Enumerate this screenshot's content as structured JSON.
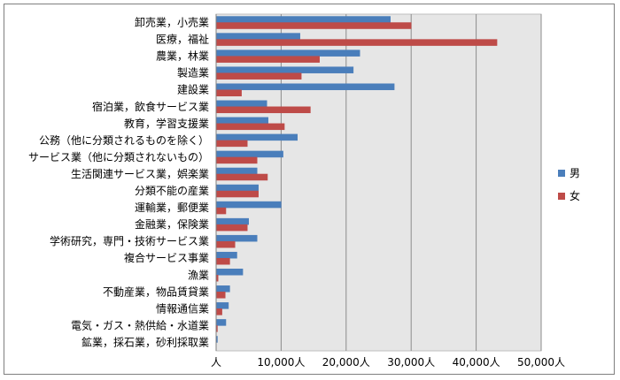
{
  "chart_data": {
    "type": "bar",
    "orientation": "horizontal",
    "categories": [
      "卸売業，小売業",
      "医療，福祉",
      "農業，林業",
      "製造業",
      "建設業",
      "宿泊業，飲食サービス業",
      "教育，学習支援業",
      "公務（他に分類されるものを除く）",
      "サービス業（他に分類されないもの）",
      "生活関連サービス業，娯楽業",
      "分類不能の産業",
      "運輸業，郵便業",
      "金融業，保険業",
      "学術研究，専門・技術サービス業",
      "複合サービス事業",
      "漁業",
      "不動産業，物品賃貸業",
      "情報通信業",
      "電気・ガス・熱供給・水道業",
      "鉱業，採石業，砂利採取業"
    ],
    "series": [
      {
        "name": "男",
        "color": "#4a7ebb",
        "values": [
          26800,
          12900,
          22100,
          21100,
          27400,
          7800,
          8000,
          12500,
          10300,
          6300,
          6500,
          10000,
          5000,
          6300,
          3200,
          4100,
          2100,
          1900,
          1500,
          200
        ]
      },
      {
        "name": "女",
        "color": "#be4b48",
        "values": [
          30000,
          43200,
          15900,
          13100,
          3900,
          14500,
          10500,
          4800,
          6300,
          7900,
          6500,
          1500,
          4800,
          2900,
          2100,
          300,
          1400,
          900,
          200,
          0
        ]
      }
    ],
    "xlim": [
      0,
      50000
    ],
    "xticks": [
      0,
      10000,
      20000,
      30000,
      40000,
      50000
    ],
    "xtick_labels": [
      "人",
      "10,000人",
      "20,000人",
      "30,000人",
      "40,000人",
      "50,000人"
    ],
    "grid": true,
    "plot_background": "#e6e6e6",
    "legend_position": "right"
  }
}
